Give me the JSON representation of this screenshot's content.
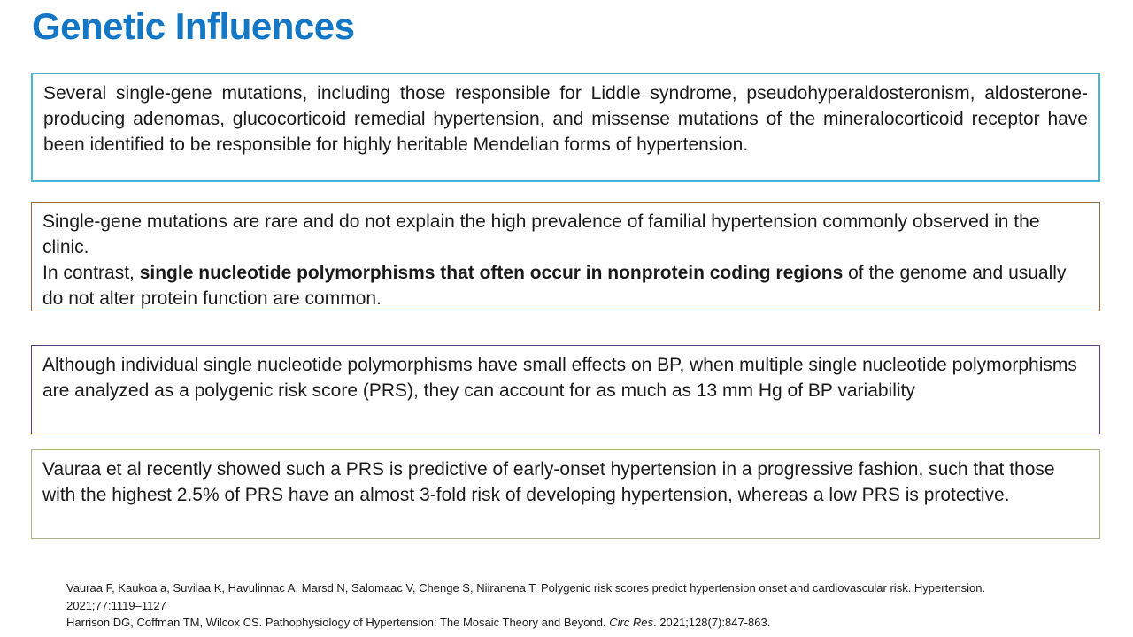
{
  "title": "Genetic Influences",
  "colors": {
    "title": "#1377c6",
    "text": "#1a1a1a",
    "box1_border": "#45b8da",
    "box2_border": "#9c6a38",
    "box3_border": "#5e3d7d",
    "box4_border": "#abb287"
  },
  "boxes": {
    "box1": {
      "text": "Several single-gene mutations, including those responsible for Liddle syndrome, pseudohyperaldosteronism, aldosterone-producing adenomas, glucocorticoid remedial hypertension, and missense mutations of the mineralocorticoid receptor have been identified to be responsible for highly heritable Mendelian forms of hypertension."
    },
    "box2": {
      "para1": "Single-gene mutations are rare and do not explain the high prevalence of familial hypertension commonly observed in the clinic.",
      "para2_prefix": "In contrast, ",
      "para2_bold": "single nucleotide polymorphisms that often occur in nonprotein coding regions",
      "para2_suffix": " of the genome and usually do not alter protein function are common."
    },
    "box3": {
      "text": "Although individual single nucleotide polymorphisms have small effects on BP, when multiple single nucleotide polymorphisms are analyzed as a polygenic risk score (PRS), they can account for as much as 13 mm Hg of BP variability"
    },
    "box4": {
      "text": "Vauraa et al recently showed such a PRS is predictive of early-onset hypertension in a progressive fashion, such that those with the highest 2.5% of PRS have an almost 3-fold risk of developing hypertension, whereas a low PRS is protective."
    }
  },
  "references": {
    "ref1_line1": "Vauraa F, Kaukoa a, Suvilaa K, Havulinnac A, Marsd N, Salomaac V, Chenge S, Niiranena T. Polygenic risk scores predict hypertension onset and cardiovascular risk. Hypertension.",
    "ref1_line2": "2021;77:1119–1127",
    "ref2_prefix": "Harrison DG, Coffman TM, Wilcox CS. Pathophysiology of Hypertension: The Mosaic Theory and Beyond. ",
    "ref2_italic": "Circ Res",
    "ref2_suffix": ". 2021;128(7):847-863."
  }
}
